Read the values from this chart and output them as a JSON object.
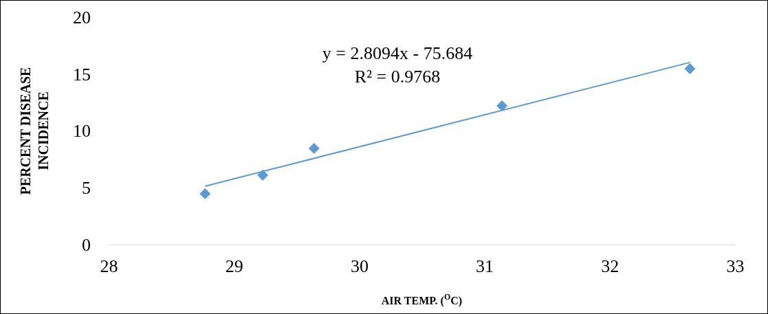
{
  "chart_data": {
    "type": "scatter",
    "xlabel": "AIR TEMP. ($^{O}$C)",
    "ylabel": "PERCENT DISEASE INCIDENCE",
    "xlim": [
      28,
      33
    ],
    "xticks": [
      28,
      29,
      30,
      31,
      32,
      33
    ],
    "ylim": [
      0,
      20
    ],
    "yticks": [
      0,
      5,
      10,
      15,
      20
    ],
    "grid": false,
    "annotations": [
      "y = 2.8094x - 75.684",
      "R² = 0.9768"
    ],
    "series": [
      {
        "marker": "diamond",
        "color": "#5b9bd5",
        "x": [
          28.77,
          29.23,
          29.64,
          31.14,
          32.64
        ],
        "values": [
          4.47,
          6.1,
          8.46,
          12.2,
          15.47
        ]
      },
      {
        "type": "line",
        "color": "#5b9bd5",
        "x": [
          28.77,
          32.64
        ],
        "values": [
          5.14,
          16.02
        ]
      }
    ]
  }
}
